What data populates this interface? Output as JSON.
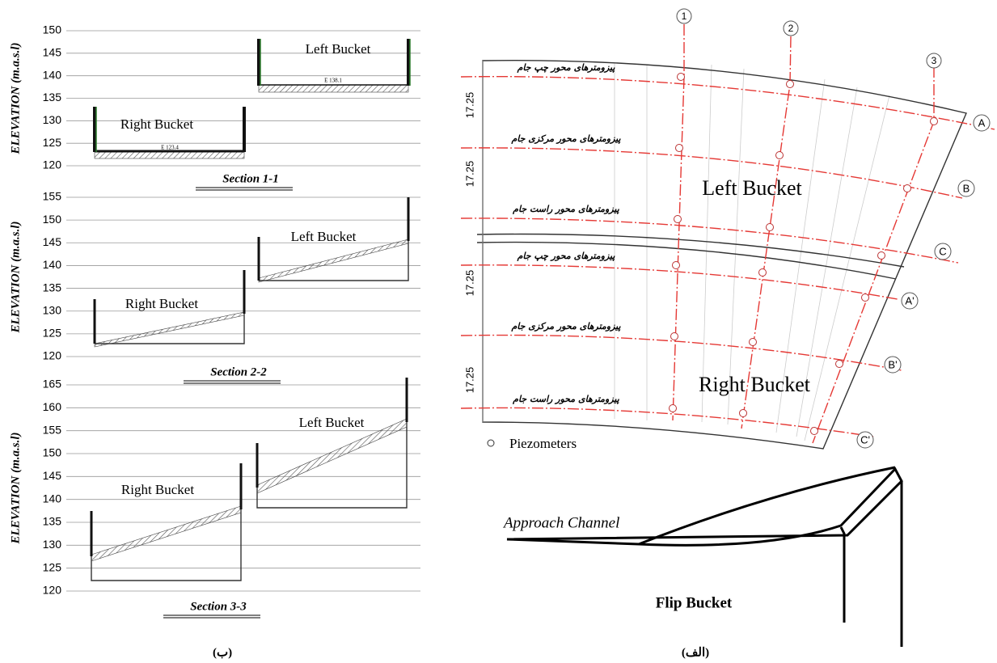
{
  "sections": [
    {
      "title": "Section 1-1",
      "y_label": "ELEVATION (m.a.s.l)",
      "ylim": [
        120,
        150
      ],
      "yticks": [
        120,
        125,
        130,
        135,
        140,
        145,
        150
      ],
      "left_bucket": "Left Bucket",
      "right_bucket": "Right Bucket",
      "left_level": "E 138.1",
      "right_level": "E 123.4"
    },
    {
      "title": "Section 2-2",
      "y_label": "ELEVATION (m.a.s.l)",
      "ylim": [
        120,
        155
      ],
      "yticks": [
        120,
        125,
        130,
        135,
        140,
        145,
        150,
        155
      ],
      "left_bucket": "Left Bucket",
      "right_bucket": "Right Bucket"
    },
    {
      "title": "Section 3-3",
      "y_label": "ELEVATION (m.a.s.l)",
      "ylim": [
        120,
        165
      ],
      "yticks": [
        120,
        125,
        130,
        135,
        140,
        145,
        150,
        155,
        160,
        165
      ],
      "left_bucket": "Left Bucket",
      "right_bucket": "Right Bucket"
    }
  ],
  "plan": {
    "axes": [
      "1",
      "2",
      "3"
    ],
    "rows": [
      "A",
      "B",
      "C",
      "A'",
      "B'",
      "C'"
    ],
    "row_labels": [
      "پیزومترهای محور چپ جام",
      "پیزومترهای محور مرکزی جام",
      "پیزومترهای محور راست جام",
      "پیزومترهای محور چپ جام",
      "پیزومترهای محور مرکزی جام",
      "پیزومترهای محور راست جام"
    ],
    "dimensions": [
      "17.25",
      "17.25",
      "17.25",
      "17.25"
    ],
    "left_bucket": "Left Bucket",
    "right_bucket": "Right Bucket",
    "legend": "Piezometers"
  },
  "sketch": {
    "approach": "Approach Channel",
    "flip": "Flip Bucket"
  },
  "captions": {
    "left": "(ب)",
    "right": "(الف)"
  }
}
